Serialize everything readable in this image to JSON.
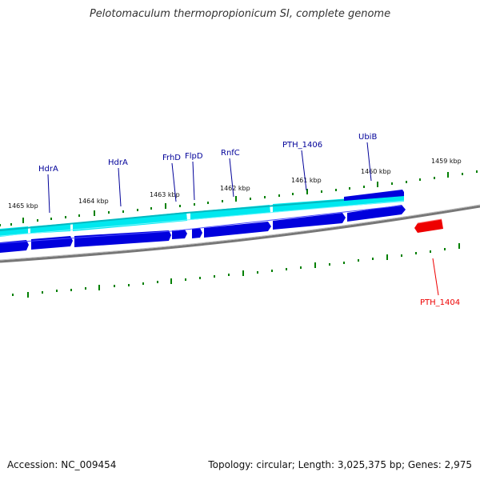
{
  "title": "Pelotomaculum thermopropionicum SI, complete genome",
  "footer": {
    "accession": "Accession: NC_009454",
    "summary": "Topology: circular; Length: 3,025,375 bp; Genes: 2,975"
  },
  "colors": {
    "forward_gene": "#0000dd",
    "reverse_gene": "#ee0000",
    "cds_band": "#00e5ee",
    "tick": "#008000",
    "backbone": "#777777",
    "label": "#000099"
  },
  "scale": {
    "labels": [
      "1465 kbp",
      "1464 kbp",
      "1463 kbp",
      "1462 kbp",
      "1461 kbp",
      "1460 kbp",
      "1459 kbp"
    ]
  },
  "genes": [
    {
      "name": "HdrA",
      "strand": "forward"
    },
    {
      "name": "HdrA",
      "strand": "forward"
    },
    {
      "name": "FrhD",
      "strand": "forward"
    },
    {
      "name": "FlpD",
      "strand": "forward"
    },
    {
      "name": "RnfC",
      "strand": "forward"
    },
    {
      "name": "PTH_1406",
      "strand": "forward"
    },
    {
      "name": "UbiB",
      "strand": "forward"
    },
    {
      "name": "PTH_1404",
      "strand": "reverse"
    }
  ]
}
